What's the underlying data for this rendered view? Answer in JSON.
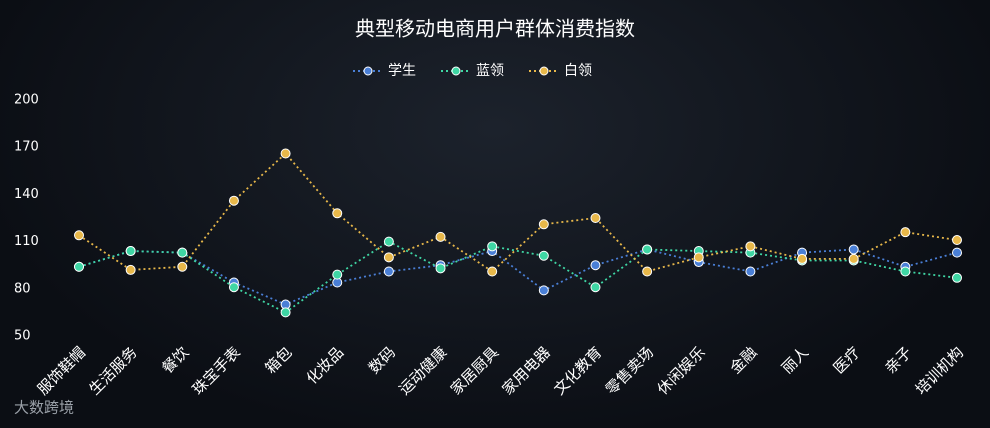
{
  "chart_data": {
    "type": "line",
    "title": "典型移动电商用户群体消费指数",
    "categories": [
      "服饰鞋帽",
      "生活服务",
      "餐饮",
      "珠宝手表",
      "箱包",
      "化妆品",
      "数码",
      "运动健康",
      "家居厨具",
      "家用电器",
      "文化教育",
      "零售卖场",
      "休闲娱乐",
      "金融",
      "丽人",
      "医疗",
      "亲子",
      "培训机构"
    ],
    "series": [
      {
        "name": "学生",
        "color": "#4a7fd6",
        "values": [
          94,
          104,
          103,
          84,
          70,
          84,
          91,
          95,
          104,
          79,
          95,
          105,
          97,
          91,
          103,
          105,
          94,
          103
        ]
      },
      {
        "name": "蓝领",
        "color": "#3fd6a4",
        "values": [
          94,
          104,
          103,
          81,
          65,
          89,
          110,
          93,
          107,
          101,
          81,
          105,
          104,
          103,
          98,
          98,
          91,
          87
        ]
      },
      {
        "name": "白领",
        "color": "#e8b84a",
        "values": [
          114,
          92,
          94,
          136,
          166,
          128,
          100,
          113,
          91,
          121,
          125,
          91,
          100,
          107,
          99,
          99,
          116,
          111
        ]
      }
    ],
    "ylim": [
      50,
      200
    ],
    "yticks": [
      50,
      80,
      110,
      140,
      170,
      200
    ],
    "grid": false,
    "legend": "top",
    "watermark": "大数跨境"
  }
}
